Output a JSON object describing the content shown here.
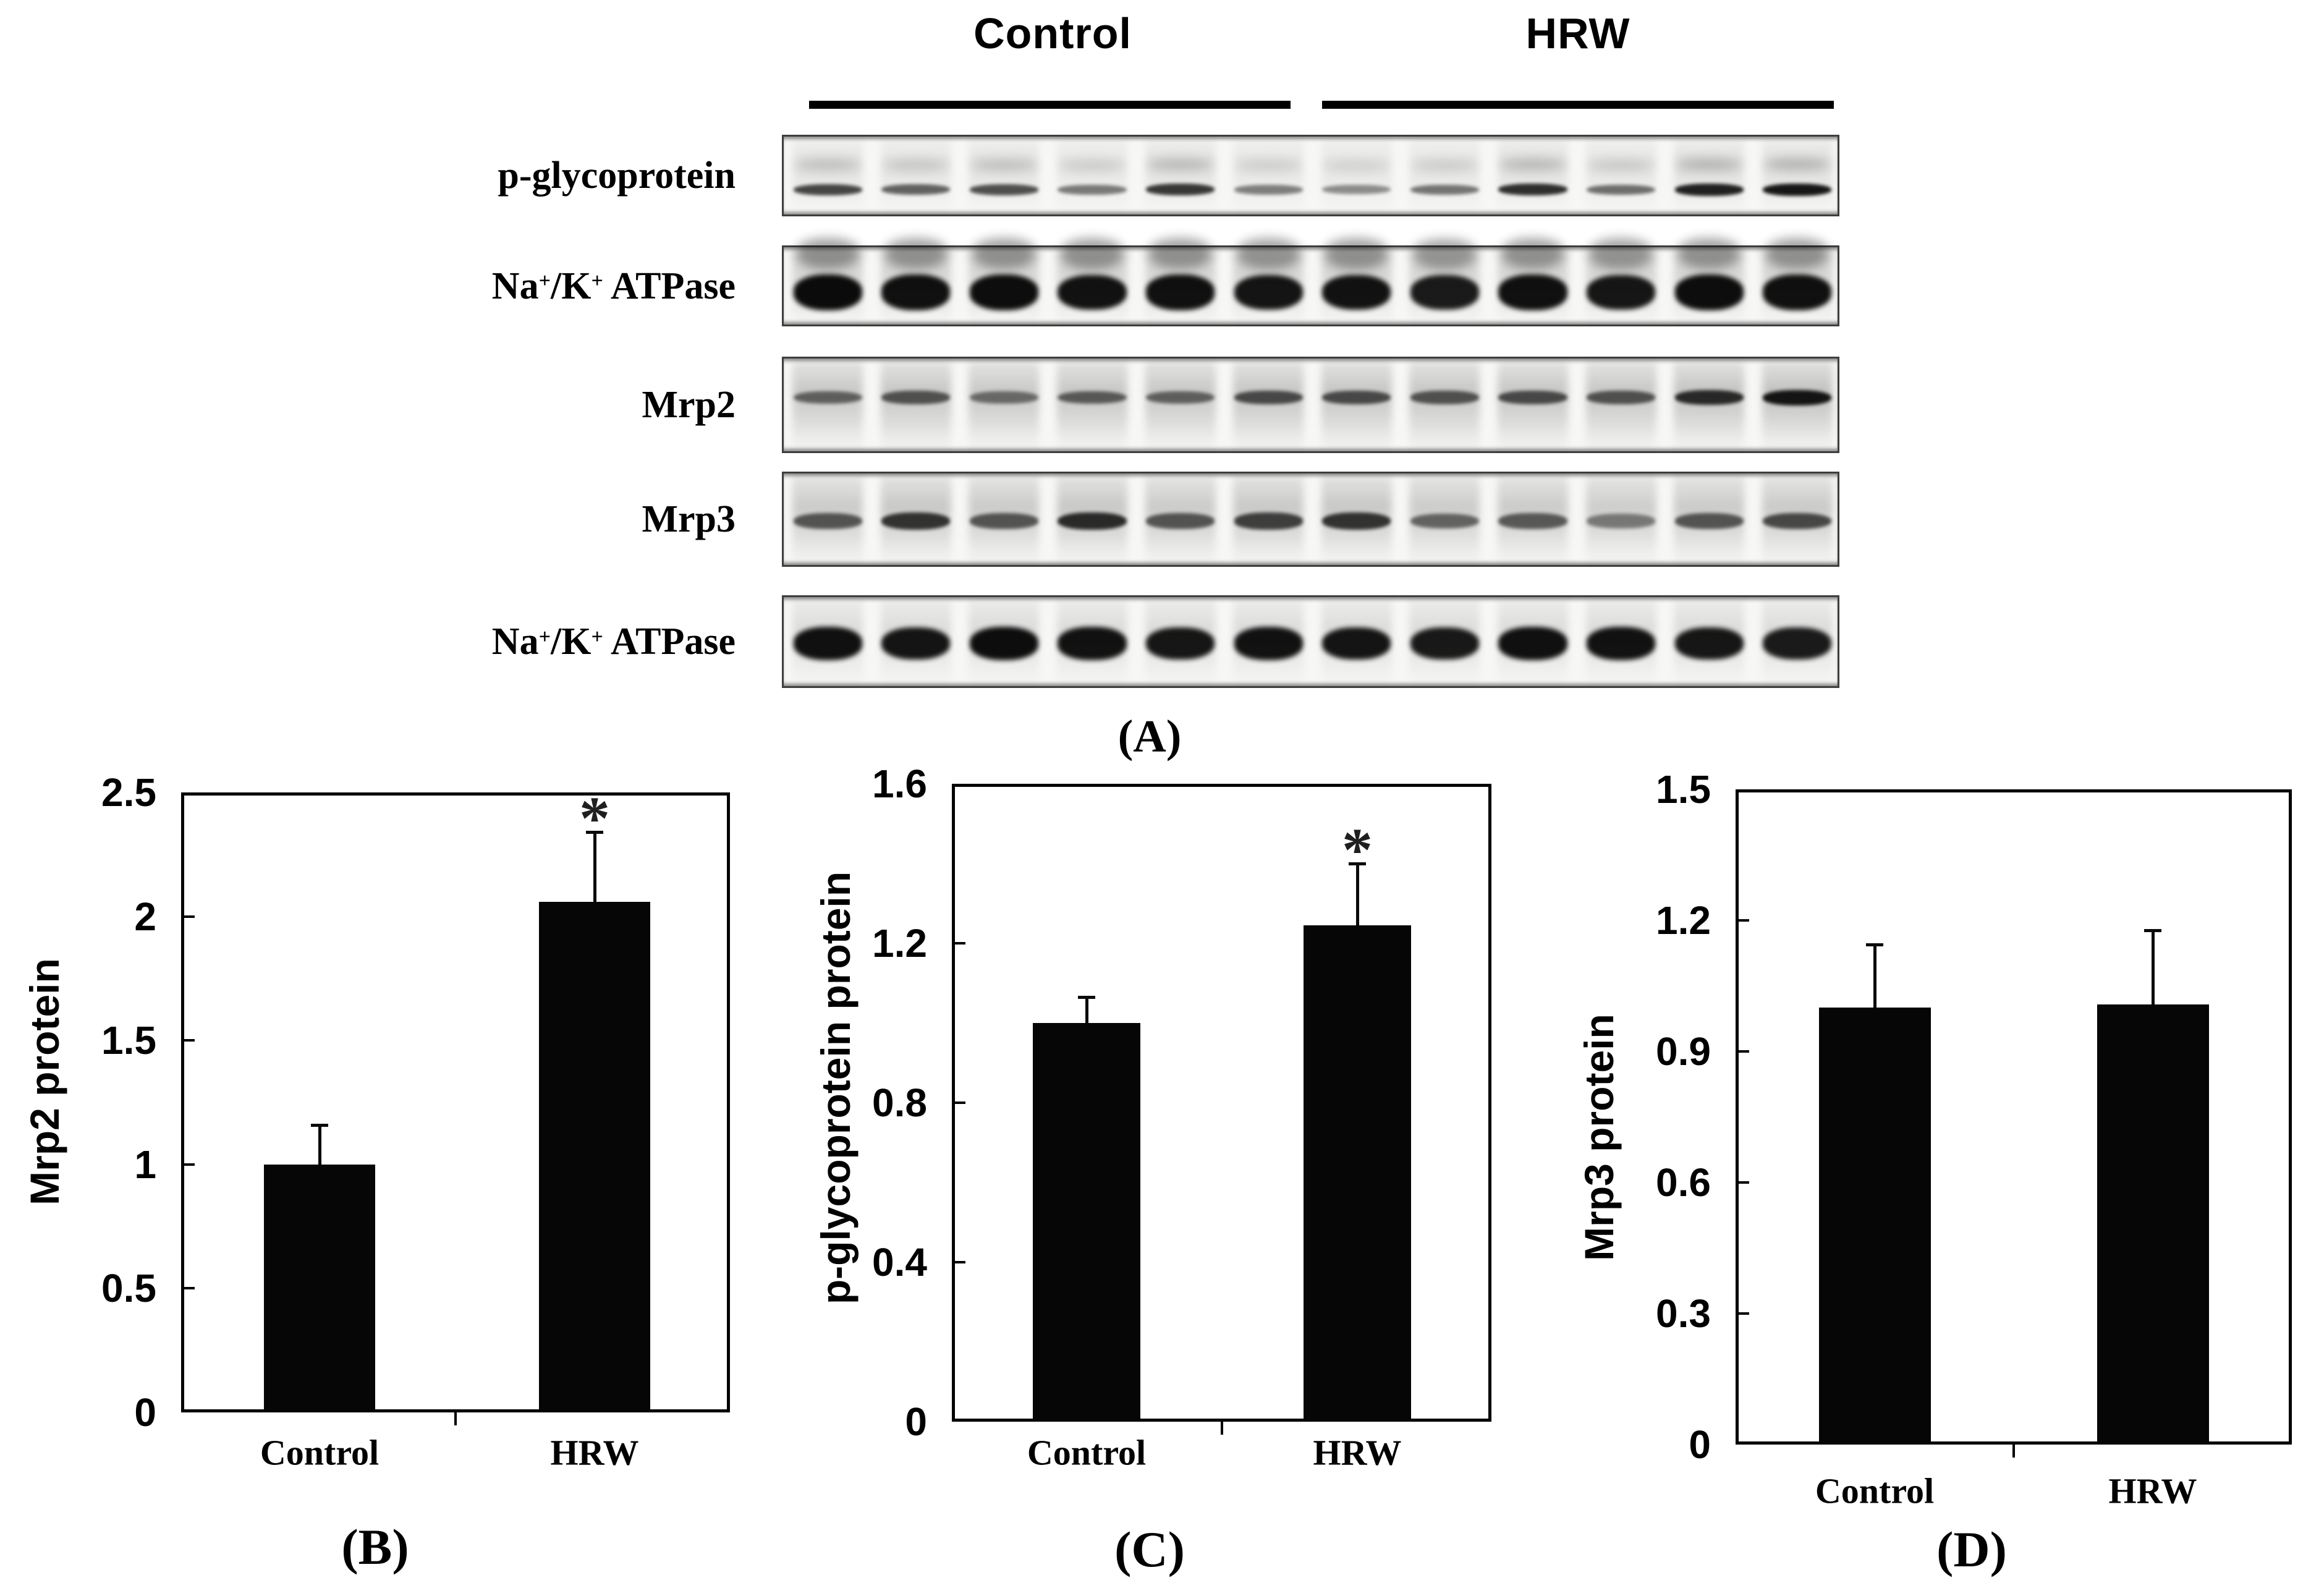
{
  "figure": {
    "panel_a": {
      "label": "(A)",
      "group_headers": [
        {
          "label": "Control"
        },
        {
          "label": "HRW"
        }
      ],
      "rows": [
        {
          "name": "p-glycoprotein",
          "label_parts": [
            {
              "t": "p-glycoprotein"
            }
          ],
          "lanes": [
            0.72,
            0.6,
            0.68,
            0.5,
            0.78,
            0.48,
            0.42,
            0.52,
            0.82,
            0.55,
            0.88,
            0.92
          ]
        },
        {
          "name": "Na+/K+ ATPase",
          "label_parts": [
            {
              "t": "Na"
            },
            {
              "t": "+",
              "sup": true
            },
            {
              "t": "/K"
            },
            {
              "t": "+",
              "sup": true
            },
            {
              "t": " ATPase"
            }
          ],
          "lanes": [
            0.97,
            0.95,
            0.96,
            0.94,
            0.95,
            0.93,
            0.94,
            0.9,
            0.95,
            0.92,
            0.96,
            0.95
          ]
        },
        {
          "name": "Mrp2",
          "label_parts": [
            {
              "t": "Mrp2"
            }
          ],
          "lanes": [
            0.55,
            0.62,
            0.5,
            0.58,
            0.55,
            0.66,
            0.66,
            0.62,
            0.66,
            0.62,
            0.82,
            0.92
          ]
        },
        {
          "name": "Mrp3",
          "label_parts": [
            {
              "t": "Mrp3"
            }
          ],
          "lanes": [
            0.62,
            0.78,
            0.62,
            0.82,
            0.62,
            0.72,
            0.78,
            0.55,
            0.6,
            0.45,
            0.62,
            0.68
          ]
        },
        {
          "name": "Na+/K+ ATPase",
          "label_parts": [
            {
              "t": "Na"
            },
            {
              "t": "+",
              "sup": true
            },
            {
              "t": "/K"
            },
            {
              "t": "+",
              "sup": true
            },
            {
              "t": " ATPase"
            }
          ],
          "lanes": [
            0.95,
            0.93,
            0.96,
            0.94,
            0.92,
            0.94,
            0.93,
            0.91,
            0.95,
            0.94,
            0.92,
            0.9
          ]
        }
      ]
    }
  },
  "chart_data": [
    {
      "type": "bar",
      "panel_label": "(B)",
      "categories": [
        "Control",
        "HRW"
      ],
      "values": [
        1.0,
        2.06
      ],
      "errors": [
        0.16,
        0.28
      ],
      "significance": [
        null,
        "*"
      ],
      "title": "",
      "xlabel": "",
      "ylabel": "Mrp2 protein",
      "ylim": [
        0,
        2.5
      ],
      "yticks": [
        0,
        0.5,
        1,
        1.5,
        2,
        2.5
      ],
      "ytick_labels": [
        "0",
        "0.5",
        "1",
        "1.5",
        "2",
        "2.5"
      ],
      "grid": false,
      "legend": "none",
      "bar_color": "#060606"
    },
    {
      "type": "bar",
      "panel_label": "(C)",
      "categories": [
        "Control",
        "HRW"
      ],
      "values": [
        1.0,
        1.245
      ],
      "errors": [
        0.065,
        0.155
      ],
      "significance": [
        null,
        "*"
      ],
      "title": "",
      "xlabel": "",
      "ylabel": "p-glycoprotein  protein",
      "ylim": [
        0,
        1.6
      ],
      "yticks": [
        0,
        0.4,
        0.8,
        1.2,
        1.6
      ],
      "ytick_labels": [
        "0",
        "0.4",
        "0.8",
        "1.2",
        "1.6"
      ],
      "grid": false,
      "legend": "none",
      "bar_color": "#060606"
    },
    {
      "type": "bar",
      "panel_label": "(D)",
      "categories": [
        "Control",
        "HRW"
      ],
      "values": [
        1.0,
        1.007
      ],
      "errors": [
        0.145,
        0.17
      ],
      "significance": [
        null,
        null
      ],
      "title": "",
      "xlabel": "",
      "ylabel": "Mrp3 protein",
      "ylim": [
        0,
        1.5
      ],
      "yticks": [
        0,
        0.3,
        0.6,
        0.9,
        1.2,
        1.5
      ],
      "ytick_labels": [
        "0",
        "0.3",
        "0.6",
        "0.9",
        "1.2",
        "1.5"
      ],
      "grid": false,
      "legend": "none",
      "bar_color": "#060606"
    }
  ],
  "colors": {
    "ink": "#000000",
    "bar": "#060606",
    "blot_border": "#3e3e3e",
    "asterisk": "#1f1f1f"
  }
}
